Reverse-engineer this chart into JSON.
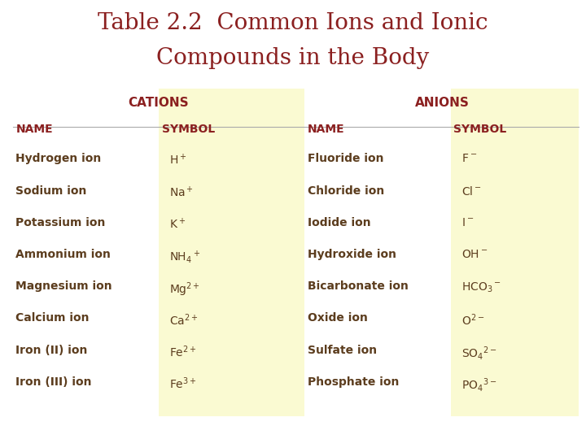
{
  "title_line1": "Table 2.2  Common Ions and Ionic",
  "title_line2": "Compounds in the Body",
  "title_color": "#8B2020",
  "bg_color": "#FFFFFF",
  "cell_bg_color": "#FAFAD2",
  "header_color": "#8B2020",
  "name_color": "#5C3D1E",
  "cation_names": [
    "Hydrogen ion",
    "Sodium ion",
    "Potassium ion",
    "Ammonium ion",
    "Magnesium ion",
    "Calcium ion",
    "Iron (II) ion",
    "Iron (III) ion"
  ],
  "cation_symbols": [
    "H$^+$",
    "Na$^+$",
    "K$^+$",
    "NH$_4$$^+$",
    "Mg$^{2+}$",
    "Ca$^{2+}$",
    "Fe$^{2+}$",
    "Fe$^{3+}$"
  ],
  "anion_names": [
    "Fluoride ion",
    "Chloride ion",
    "Iodide ion",
    "Hydroxide ion",
    "Bicarbonate ion",
    "Oxide ion",
    "Sulfate ion",
    "Phosphate ion"
  ],
  "anion_symbols": [
    "F$^-$",
    "Cl$^-$",
    "I$^-$",
    "OH$^-$",
    "HCO$_3$$^-$",
    "O$^{2-}$",
    "SO$_4$$^{2-}$",
    "PO$_4$$^{3-}$"
  ]
}
